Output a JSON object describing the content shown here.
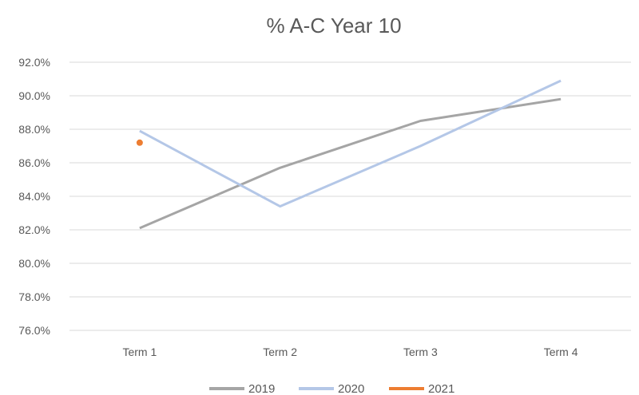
{
  "chart_data": {
    "type": "line",
    "title": "% A-C Year 10",
    "xlabel": "",
    "ylabel": "",
    "categories": [
      "Term 1",
      "Term 2",
      "Term 3",
      "Term 4"
    ],
    "ylim": [
      76,
      92
    ],
    "yticks": [
      76,
      78,
      80,
      82,
      84,
      86,
      88,
      90,
      92
    ],
    "ytick_labels": [
      "76.0%",
      "78.0%",
      "80.0%",
      "82.0%",
      "84.0%",
      "86.0%",
      "88.0%",
      "90.0%",
      "92.0%"
    ],
    "grid": true,
    "legend_position": "bottom",
    "series": [
      {
        "name": "2019",
        "color": "#a5a5a5",
        "values": [
          82.1,
          85.7,
          88.5,
          89.8
        ]
      },
      {
        "name": "2020",
        "color": "#b4c7e7",
        "values": [
          87.9,
          83.4,
          87.0,
          90.9
        ]
      },
      {
        "name": "2021",
        "color": "#ed7d31",
        "values": [
          87.2,
          null,
          null,
          null
        ]
      }
    ]
  }
}
